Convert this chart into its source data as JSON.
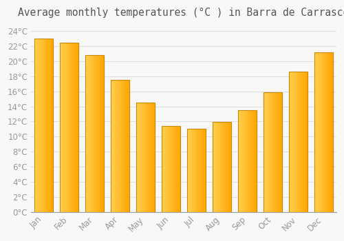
{
  "title": "Average monthly temperatures (°C ) in Barra de Carrasco",
  "months": [
    "Jan",
    "Feb",
    "Mar",
    "Apr",
    "May",
    "Jun",
    "Jul",
    "Aug",
    "Sep",
    "Oct",
    "Nov",
    "Dec"
  ],
  "values": [
    23.0,
    22.5,
    20.8,
    17.5,
    14.5,
    11.4,
    11.0,
    11.9,
    13.5,
    15.9,
    18.6,
    21.2
  ],
  "bar_color_main": "#FFA500",
  "bar_color_light": "#FFD050",
  "bar_color_dark": "#E08800",
  "bar_edge_color": "#CC8800",
  "background_color": "#F8F8F8",
  "plot_bg_color": "#F8F8F8",
  "grid_color": "#E0E0E0",
  "ylim": [
    0,
    25
  ],
  "yticks": [
    0,
    2,
    4,
    6,
    8,
    10,
    12,
    14,
    16,
    18,
    20,
    22,
    24
  ],
  "tick_label_color": "#999999",
  "title_color": "#555555",
  "title_fontsize": 10.5,
  "tick_fontsize": 8.5,
  "figsize": [
    5.0,
    3.5
  ],
  "dpi": 100,
  "bar_width": 0.75
}
